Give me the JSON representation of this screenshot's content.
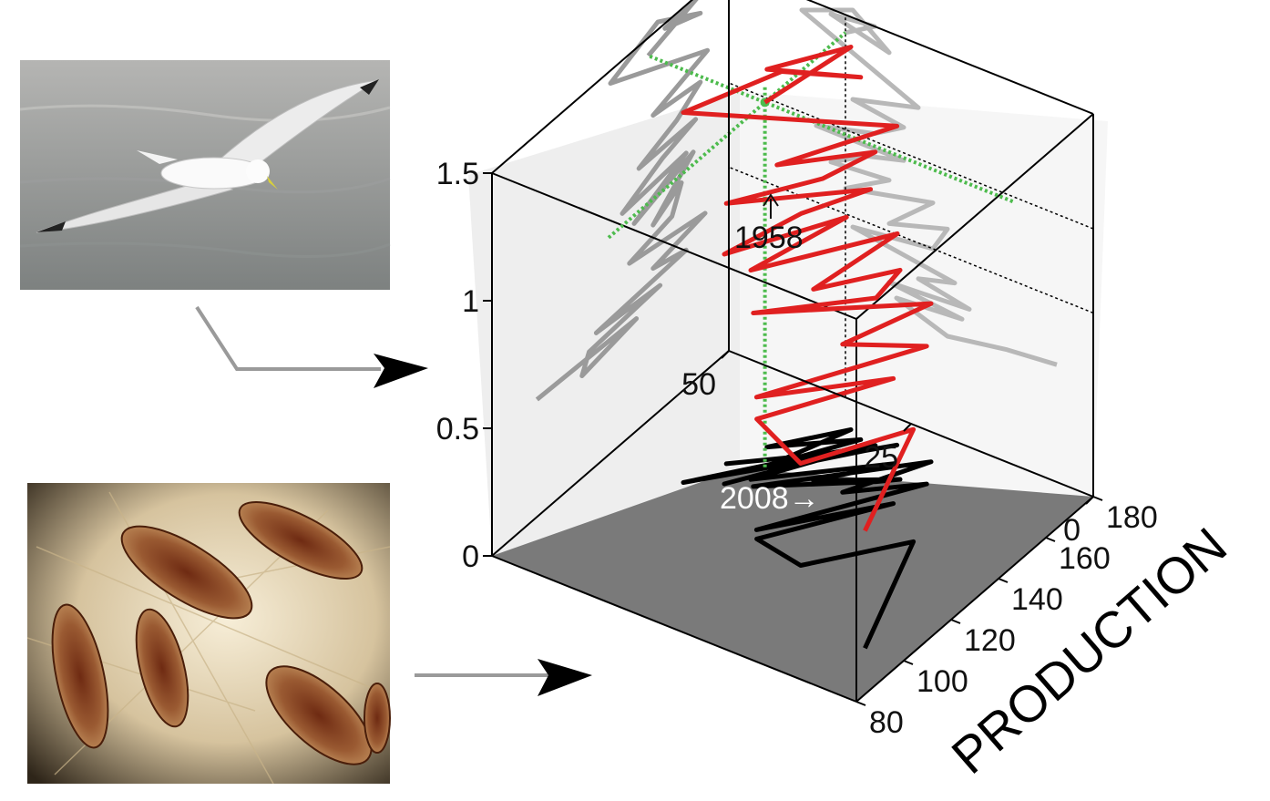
{
  "chart_data": {
    "type": "line",
    "projection": "3d",
    "z_axis": {
      "ticks": [
        0,
        0.5,
        1,
        1.5
      ],
      "tick_labels": [
        "0",
        "0.5",
        "1",
        "1.5"
      ],
      "range": [
        0,
        1.5
      ]
    },
    "depth_axis": {
      "ticks": [
        0,
        25,
        50
      ],
      "tick_labels": [
        "0",
        "25",
        "50"
      ],
      "range": [
        0,
        50
      ]
    },
    "x_axis": {
      "label": "PRODUCTION",
      "ticks": [
        80,
        100,
        120,
        140,
        160,
        180
      ],
      "tick_labels": [
        "80",
        "100",
        "120",
        "140",
        "160",
        "180"
      ],
      "range": [
        80,
        180
      ]
    },
    "annotations": [
      {
        "text": "1958",
        "at": [
          146,
          34,
          1.43
        ]
      },
      {
        "text": "2008→",
        "at": [
          99,
          5,
          0.46
        ]
      }
    ],
    "trajectory": [
      [
        146,
        34,
        1.43
      ],
      [
        170,
        30,
        1.5
      ],
      [
        153,
        36,
        1.48
      ],
      [
        168,
        28,
        1.42
      ],
      [
        150,
        33,
        1.53
      ],
      [
        130,
        40,
        1.45
      ],
      [
        171,
        24,
        1.25
      ],
      [
        148,
        33,
        1.18
      ],
      [
        168,
        26,
        1.15
      ],
      [
        158,
        30,
        1.08
      ],
      [
        142,
        38,
        1.02
      ],
      [
        166,
        26,
        1.02
      ],
      [
        152,
        31,
        0.98
      ],
      [
        135,
        36,
        0.9
      ],
      [
        162,
        28,
        0.92
      ],
      [
        140,
        34,
        0.82
      ],
      [
        165,
        22,
        0.9
      ],
      [
        148,
        28,
        0.75
      ],
      [
        160,
        20,
        0.82
      ],
      [
        156,
        22,
        0.72
      ],
      [
        138,
        33,
        0.68
      ],
      [
        170,
        19,
        0.62
      ],
      [
        148,
        24,
        0.58
      ],
      [
        162,
        17,
        0.54
      ],
      [
        124,
        28,
        0.52
      ],
      [
        151,
        18,
        0.49
      ],
      [
        121,
        27,
        0.47
      ],
      [
        118,
        20,
        0.4
      ],
      [
        141,
        12,
        0.44
      ],
      [
        99,
        5,
        0.46
      ]
    ],
    "floor_projection_color": "#000000",
    "wall_projection_color": "#9a9a9a",
    "back_wall_projection_color": "#b8b8b8",
    "trajectory_color": "#e02020",
    "guide_color": "#4dbb4d",
    "floor_color": "#7a7a7a",
    "wall_color": "#e9e9e9"
  },
  "panels": {
    "top_photo": "kittiwake-seabird-in-flight",
    "bottom_photo": "copepod-zooplankton-microscope"
  },
  "arrow_color": "#999999",
  "arrowhead_color": "#000000"
}
